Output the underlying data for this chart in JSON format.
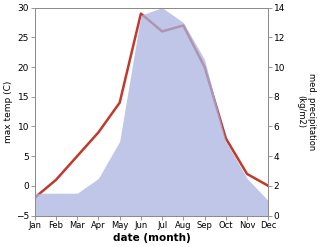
{
  "months": [
    "Jan",
    "Feb",
    "Mar",
    "Apr",
    "May",
    "Jun",
    "Jul",
    "Aug",
    "Sep",
    "Oct",
    "Nov",
    "Dec"
  ],
  "x": [
    0,
    1,
    2,
    3,
    4,
    5,
    6,
    7,
    8,
    9,
    10,
    11
  ],
  "temperature": [
    -2,
    1,
    5,
    9,
    14,
    29,
    26,
    27,
    20,
    8,
    2,
    0
  ],
  "precipitation": [
    1.5,
    1.5,
    1.5,
    2.5,
    5.0,
    13.5,
    14.0,
    13.0,
    10.5,
    5.0,
    2.5,
    1.0
  ],
  "temp_ylim": [
    -5,
    30
  ],
  "precip_ylim": [
    0,
    14
  ],
  "temp_color": "#c0392b",
  "precip_fill_color": "#aab4e0",
  "precip_fill_alpha": 0.75,
  "xlabel": "date (month)",
  "ylabel_left": "max temp (C)",
  "ylabel_right": "med. precipitation\n(kg/m2)",
  "bg_color": "#ffffff",
  "linewidth": 1.8
}
